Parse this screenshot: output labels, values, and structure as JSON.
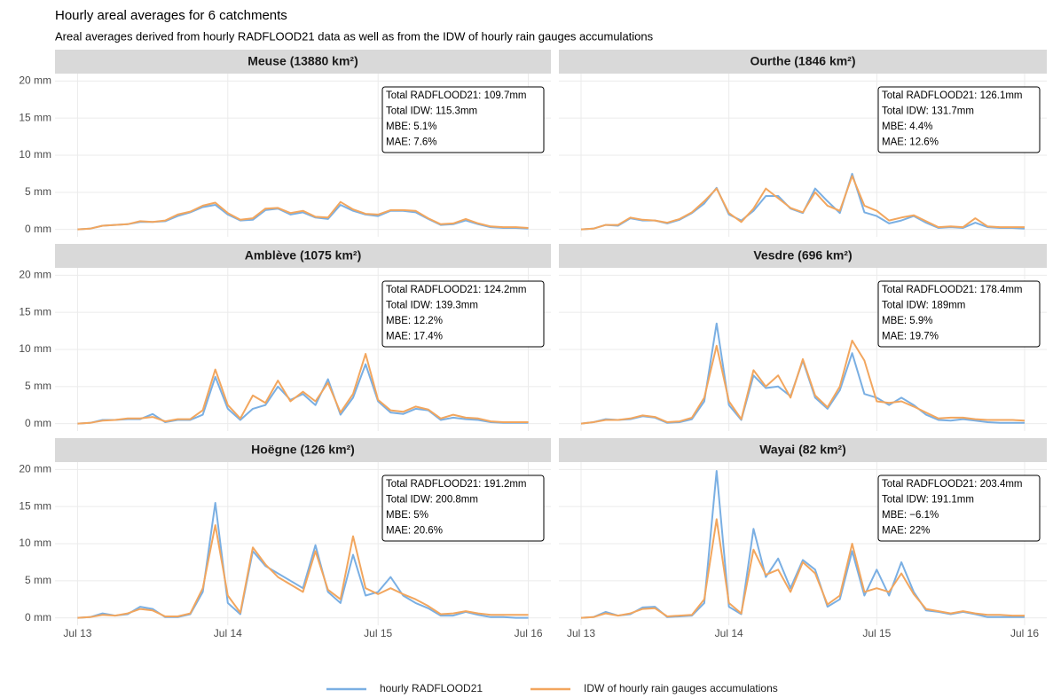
{
  "chart_data": {
    "type": "line",
    "title": "Hourly areal averages for 6 catchments",
    "subtitle": "Areal averages derived from hourly RADFLOOD21 data as well as from the IDW of hourly rain gauges accumulations",
    "x": [
      0,
      2,
      4,
      6,
      8,
      10,
      12,
      14,
      16,
      18,
      20,
      22,
      24,
      26,
      28,
      30,
      32,
      34,
      36,
      38,
      40,
      42,
      44,
      46,
      48,
      50,
      52,
      54,
      56,
      58,
      60,
      62,
      64,
      66,
      68,
      70,
      72
    ],
    "xlim": [
      -3.6,
      75.6
    ],
    "xticks": [
      {
        "value": 0,
        "label": "Jul 13"
      },
      {
        "value": 24,
        "label": "Jul 14"
      },
      {
        "value": 48,
        "label": "Jul 15"
      },
      {
        "value": 72,
        "label": "Jul 16"
      }
    ],
    "ylim": [
      -1,
      21
    ],
    "yticks": [
      {
        "value": 0,
        "label": "0 mm"
      },
      {
        "value": 5,
        "label": "5 mm"
      },
      {
        "value": 10,
        "label": "10 mm"
      },
      {
        "value": 15,
        "label": "15 mm"
      },
      {
        "value": 20,
        "label": "20 mm"
      }
    ],
    "grid": true,
    "legend_position": "bottom",
    "series": [
      {
        "name": "hourly RADFLOOD21",
        "color": "#7aafe3"
      },
      {
        "name": "IDW of hourly rain gauges accumulations",
        "color": "#f2a65e"
      }
    ],
    "panels": [
      {
        "title": "Meuse   (13880 km²)",
        "annotation": [
          "Total RADFLOOD21: 109.7mm",
          "Total IDW: 115.3mm",
          "MBE: 5.1%",
          "MAE: 7.6%"
        ],
        "values": [
          [
            0,
            0.1,
            0.5,
            0.6,
            0.7,
            1.0,
            1.0,
            1.1,
            1.8,
            2.3,
            3.0,
            3.3,
            2.0,
            1.2,
            1.3,
            2.6,
            2.8,
            2.0,
            2.3,
            1.6,
            1.4,
            3.3,
            2.5,
            2.0,
            1.8,
            2.5,
            2.5,
            2.3,
            1.4,
            0.6,
            0.7,
            1.2,
            0.7,
            0.3,
            0.2,
            0.2,
            0.1
          ],
          [
            0,
            0.1,
            0.5,
            0.6,
            0.7,
            1.1,
            1.0,
            1.2,
            2.0,
            2.4,
            3.2,
            3.6,
            2.2,
            1.3,
            1.5,
            2.8,
            2.9,
            2.2,
            2.5,
            1.7,
            1.6,
            3.7,
            2.7,
            2.1,
            2.0,
            2.6,
            2.6,
            2.5,
            1.5,
            0.7,
            0.8,
            1.4,
            0.8,
            0.4,
            0.3,
            0.3,
            0.2
          ]
        ]
      },
      {
        "title": "Ourthe   (1846 km²)",
        "annotation": [
          "Total RADFLOOD21: 126.1mm",
          "Total IDW: 131.7mm",
          "MBE: 4.4%",
          "MAE: 12.6%"
        ],
        "values": [
          [
            0,
            0.1,
            0.6,
            0.5,
            1.5,
            1.2,
            1.2,
            0.8,
            1.3,
            2.2,
            3.5,
            5.6,
            2.0,
            1.2,
            2.5,
            4.5,
            4.5,
            2.8,
            2.2,
            5.5,
            3.8,
            2.2,
            7.5,
            2.3,
            1.8,
            0.8,
            1.2,
            1.8,
            0.9,
            0.2,
            0.3,
            0.2,
            0.9,
            0.3,
            0.2,
            0.2,
            0.1
          ],
          [
            0,
            0.1,
            0.6,
            0.6,
            1.6,
            1.3,
            1.2,
            0.9,
            1.4,
            2.3,
            3.8,
            5.5,
            2.2,
            1.0,
            2.8,
            5.5,
            4.2,
            2.9,
            2.3,
            5.0,
            3.2,
            2.5,
            7.2,
            3.2,
            2.5,
            1.2,
            1.6,
            1.9,
            1.1,
            0.3,
            0.4,
            0.3,
            1.5,
            0.4,
            0.3,
            0.3,
            0.3
          ]
        ]
      },
      {
        "title": "Amblève   (1075 km²)",
        "annotation": [
          "Total RADFLOOD21: 124.2mm",
          "Total IDW: 139.3mm",
          "MBE: 12.2%",
          "MAE: 17.4%"
        ],
        "values": [
          [
            0,
            0.1,
            0.5,
            0.5,
            0.6,
            0.6,
            1.3,
            0.2,
            0.5,
            0.5,
            1.2,
            6.3,
            2.0,
            0.5,
            2.0,
            2.5,
            5.0,
            3.2,
            4.0,
            2.5,
            6.0,
            1.2,
            3.5,
            8.0,
            3.0,
            1.5,
            1.3,
            2.0,
            1.8,
            0.5,
            0.8,
            0.6,
            0.5,
            0.2,
            0.1,
            0.1,
            0.1
          ],
          [
            0,
            0.1,
            0.4,
            0.5,
            0.7,
            0.7,
            0.9,
            0.3,
            0.6,
            0.6,
            1.8,
            7.3,
            2.5,
            0.7,
            3.8,
            2.8,
            5.8,
            3.0,
            4.3,
            3.0,
            5.5,
            1.5,
            4.0,
            9.4,
            3.2,
            1.8,
            1.6,
            2.3,
            1.9,
            0.7,
            1.2,
            0.8,
            0.7,
            0.3,
            0.2,
            0.2,
            0.2
          ]
        ]
      },
      {
        "title": "Vesdre   (696 km²)",
        "annotation": [
          "Total RADFLOOD21: 178.4mm",
          "Total IDW: 189mm",
          "MBE: 5.9%",
          "MAE: 19.7%"
        ],
        "values": [
          [
            0,
            0.2,
            0.6,
            0.5,
            0.6,
            1.0,
            0.8,
            0.1,
            0.2,
            0.6,
            3.0,
            13.5,
            2.5,
            0.5,
            6.5,
            4.8,
            5.0,
            3.7,
            8.5,
            3.5,
            2.0,
            4.5,
            9.5,
            4.0,
            3.5,
            2.5,
            3.5,
            2.5,
            1.2,
            0.5,
            0.4,
            0.6,
            0.4,
            0.2,
            0.1,
            0.1,
            0.1
          ],
          [
            0,
            0.2,
            0.5,
            0.5,
            0.7,
            1.1,
            0.9,
            0.2,
            0.3,
            0.8,
            3.5,
            10.5,
            3.0,
            0.6,
            7.2,
            5.0,
            6.5,
            3.5,
            8.7,
            3.8,
            2.2,
            5.0,
            11.2,
            8.5,
            3.0,
            2.8,
            3.0,
            2.3,
            1.5,
            0.7,
            0.8,
            0.8,
            0.6,
            0.5,
            0.5,
            0.5,
            0.4
          ]
        ]
      },
      {
        "title": "Hoëgne   (126 km²)",
        "annotation": [
          "Total RADFLOOD21: 191.2mm",
          "Total IDW: 200.8mm",
          "MBE: 5%",
          "MAE: 20.6%"
        ],
        "values": [
          [
            0,
            0.1,
            0.6,
            0.3,
            0.5,
            1.5,
            1.2,
            0.1,
            0.1,
            0.5,
            3.5,
            15.5,
            2.0,
            0.5,
            9.0,
            7.0,
            6.0,
            5.0,
            4.0,
            9.8,
            3.5,
            2.0,
            8.5,
            3.0,
            3.5,
            5.5,
            3.0,
            2.0,
            1.3,
            0.3,
            0.3,
            0.8,
            0.4,
            0.1,
            0.1,
            0,
            0
          ],
          [
            0,
            0.1,
            0.4,
            0.3,
            0.6,
            1.2,
            1.0,
            0.2,
            0.2,
            0.6,
            4.0,
            12.5,
            3.0,
            0.7,
            9.5,
            7.2,
            5.5,
            4.5,
            3.5,
            9.0,
            3.8,
            2.5,
            11.0,
            4.0,
            3.2,
            4.0,
            3.2,
            2.5,
            1.6,
            0.5,
            0.6,
            0.9,
            0.6,
            0.4,
            0.4,
            0.4,
            0.4
          ]
        ]
      },
      {
        "title": "Wayai   (82 km²)",
        "annotation": [
          "Total RADFLOOD21: 203.4mm",
          "Total IDW: 191.1mm",
          "MBE: −6.1%",
          "MAE: 22%"
        ],
        "values": [
          [
            0,
            0.1,
            0.8,
            0.3,
            0.5,
            1.4,
            1.5,
            0.1,
            0.2,
            0.3,
            2.0,
            19.8,
            1.5,
            0.5,
            12.0,
            5.5,
            8.0,
            4.0,
            7.8,
            6.5,
            1.5,
            2.5,
            9.0,
            3.0,
            6.5,
            3.0,
            7.5,
            3.5,
            1.0,
            0.8,
            0.5,
            0.8,
            0.5,
            0.1,
            0.1,
            0.1,
            0.1
          ],
          [
            0,
            0.1,
            0.6,
            0.3,
            0.6,
            1.2,
            1.3,
            0.2,
            0.3,
            0.4,
            2.5,
            13.3,
            2.0,
            0.6,
            9.2,
            5.8,
            6.5,
            3.5,
            7.5,
            6.0,
            1.8,
            3.0,
            10.0,
            3.5,
            4.0,
            3.5,
            6.0,
            3.2,
            1.2,
            0.9,
            0.6,
            0.9,
            0.6,
            0.4,
            0.4,
            0.3,
            0.3
          ]
        ]
      }
    ]
  }
}
